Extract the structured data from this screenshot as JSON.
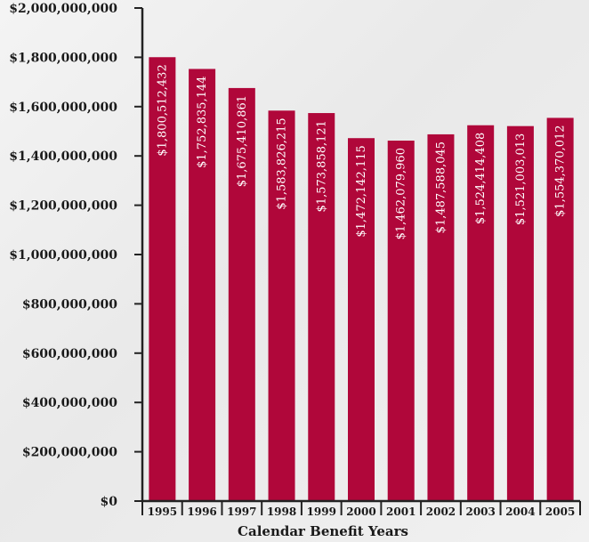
{
  "chart_data": {
    "type": "bar",
    "categories": [
      "1995",
      "1996",
      "1997",
      "1998",
      "1999",
      "2000",
      "2001",
      "2002",
      "2003",
      "2004",
      "2005"
    ],
    "values": [
      1800512432,
      1752835144,
      1675410861,
      1583826215,
      1573858121,
      1472142115,
      1462079960,
      1487588045,
      1524414408,
      1521003013,
      1554370012
    ],
    "data_labels": [
      "$1,800,512,432",
      "$1,752,835,144",
      "$1,675,410,861",
      "$1,583,826,215",
      "$1,573,858,121",
      "$1,472,142,115",
      "$1,462,079,960",
      "$1,487,588,045",
      "$1,524,414,408",
      "$1,521,003,013",
      "$1,554,370,012"
    ],
    "title": "",
    "xlabel": "Calendar Benefit Years",
    "ylabel": "",
    "ylim": [
      0,
      2000000000
    ],
    "y_ticks": [
      "$0",
      "$200,000,000",
      "$400,000,000",
      "$600,000,000",
      "$800,000,000",
      "$1,000,000,000",
      "$1,200,000,000",
      "$1,400,000,000",
      "$1,600,000,000",
      "$1,800,000,000",
      "$2,000,000,000"
    ],
    "grid": false,
    "bar_color": "#b0073a",
    "axis_color": "#222222"
  }
}
